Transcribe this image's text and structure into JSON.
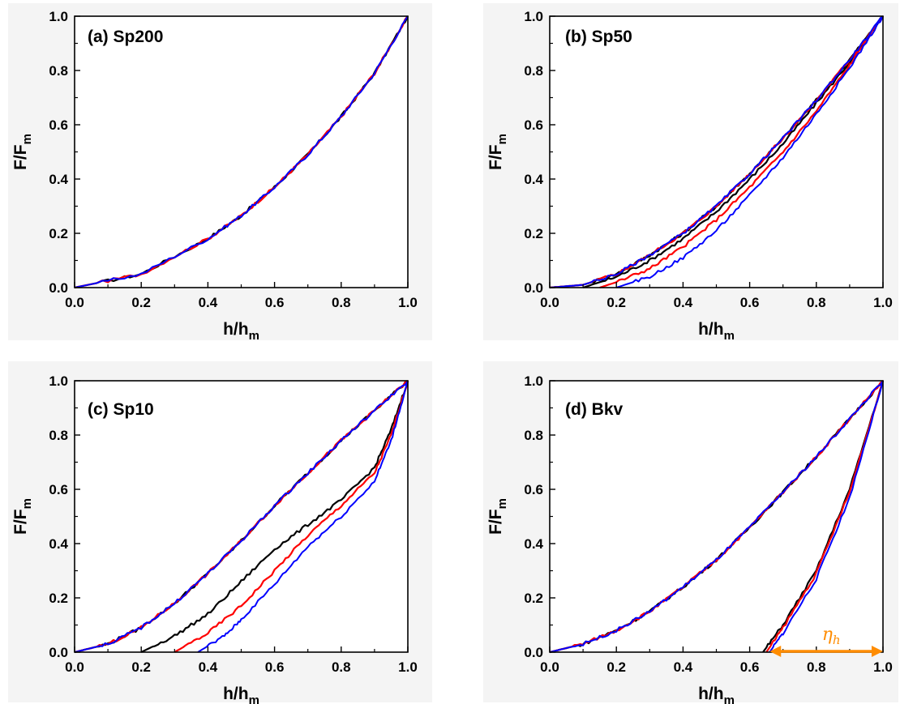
{
  "chart_data": [
    {
      "type": "line",
      "panel": "(a)",
      "label": "(a)  Sp200",
      "xlabel_main": "h/h",
      "xlabel_sub": "m",
      "ylabel_main": "F/F",
      "ylabel_sub": "m",
      "xlim": [
        0,
        1
      ],
      "ylim": [
        0,
        1
      ],
      "xticks": [
        "0.0",
        "0.2",
        "0.4",
        "0.6",
        "0.8",
        "1.0"
      ],
      "yticks": [
        "0.0",
        "0.2",
        "0.4",
        "0.6",
        "0.8",
        "1.0"
      ],
      "series": [
        {
          "color": "#000000",
          "segments": [
            {
              "x": [
                0,
                0.2,
                0.4,
                0.5,
                0.6,
                0.7,
                0.8,
                0.9,
                1.0
              ],
              "y": [
                0,
                0.05,
                0.18,
                0.265,
                0.37,
                0.49,
                0.63,
                0.79,
                1.0
              ]
            }
          ]
        },
        {
          "color": "#ff0000",
          "segments": [
            {
              "x": [
                0,
                0.2,
                0.4,
                0.5,
                0.6,
                0.7,
                0.8,
                0.9,
                1.0
              ],
              "y": [
                0,
                0.05,
                0.18,
                0.265,
                0.37,
                0.49,
                0.63,
                0.79,
                1.0
              ]
            }
          ]
        },
        {
          "color": "#0000ff",
          "segments": [
            {
              "x": [
                0,
                0.2,
                0.4,
                0.5,
                0.6,
                0.7,
                0.8,
                0.9,
                1.0
              ],
              "y": [
                0,
                0.05,
                0.18,
                0.265,
                0.37,
                0.49,
                0.63,
                0.79,
                1.0
              ]
            }
          ]
        }
      ]
    },
    {
      "type": "line",
      "panel": "(b)",
      "label": "(b) Sp50",
      "xlabel_main": "h/h",
      "xlabel_sub": "m",
      "ylabel_main": "F/F",
      "ylabel_sub": "m",
      "xlim": [
        0,
        1
      ],
      "ylim": [
        0,
        1
      ],
      "xticks": [
        "0.0",
        "0.2",
        "0.4",
        "0.6",
        "0.8",
        "1.0"
      ],
      "yticks": [
        "0.0",
        "0.2",
        "0.4",
        "0.6",
        "0.8",
        "1.0"
      ],
      "series": [
        {
          "color": "#000000",
          "segments": [
            {
              "x": [
                0,
                0.1,
                0.2,
                0.3,
                0.4,
                0.5,
                0.6,
                0.7,
                0.8,
                0.9,
                1.0
              ],
              "y": [
                0,
                0.01,
                0.05,
                0.12,
                0.2,
                0.3,
                0.42,
                0.55,
                0.69,
                0.84,
                1.0
              ]
            },
            {
              "x": [
                0.1,
                0.2,
                0.3,
                0.4,
                0.5,
                0.6,
                0.7,
                0.8,
                0.9,
                1.0
              ],
              "y": [
                0,
                0.04,
                0.1,
                0.18,
                0.28,
                0.4,
                0.53,
                0.68,
                0.83,
                1.0
              ]
            }
          ]
        },
        {
          "color": "#ff0000",
          "segments": [
            {
              "x": [
                0,
                0.1,
                0.2,
                0.3,
                0.4,
                0.5,
                0.6,
                0.7,
                0.8,
                0.9,
                1.0
              ],
              "y": [
                0,
                0.01,
                0.05,
                0.12,
                0.2,
                0.3,
                0.42,
                0.55,
                0.69,
                0.84,
                1.0
              ]
            },
            {
              "x": [
                0.15,
                0.2,
                0.3,
                0.4,
                0.5,
                0.6,
                0.7,
                0.8,
                0.9,
                1.0
              ],
              "y": [
                0,
                0.02,
                0.07,
                0.15,
                0.25,
                0.37,
                0.5,
                0.65,
                0.82,
                1.0
              ]
            }
          ]
        },
        {
          "color": "#0000ff",
          "segments": [
            {
              "x": [
                0,
                0.1,
                0.2,
                0.3,
                0.4,
                0.5,
                0.6,
                0.7,
                0.8,
                0.9,
                1.0
              ],
              "y": [
                0,
                0.01,
                0.05,
                0.12,
                0.2,
                0.3,
                0.42,
                0.55,
                0.69,
                0.84,
                1.0
              ]
            },
            {
              "x": [
                0.2,
                0.3,
                0.4,
                0.5,
                0.6,
                0.7,
                0.8,
                0.9,
                1.0
              ],
              "y": [
                0,
                0.04,
                0.11,
                0.21,
                0.34,
                0.48,
                0.64,
                0.81,
                1.0
              ]
            }
          ]
        }
      ]
    },
    {
      "type": "line",
      "panel": "(c)",
      "label": "(c) Sp10",
      "xlabel_main": "h/h",
      "xlabel_sub": "m",
      "ylabel_main": "F/F",
      "ylabel_sub": "m",
      "xlim": [
        0,
        1
      ],
      "ylim": [
        0,
        1
      ],
      "xticks": [
        "0.0",
        "0.2",
        "0.4",
        "0.6",
        "0.8",
        "1.0"
      ],
      "yticks": [
        "0.0",
        "0.2",
        "0.4",
        "0.6",
        "0.8",
        "1.0"
      ],
      "series": [
        {
          "color": "#000000",
          "segments": [
            {
              "x": [
                0,
                0.1,
                0.2,
                0.3,
                0.4,
                0.5,
                0.6,
                0.7,
                0.8,
                0.9,
                1.0
              ],
              "y": [
                0,
                0.03,
                0.09,
                0.18,
                0.29,
                0.41,
                0.54,
                0.66,
                0.78,
                0.89,
                1.0
              ]
            },
            {
              "x": [
                0.2,
                0.3,
                0.4,
                0.5,
                0.6,
                0.7,
                0.8,
                0.9,
                0.95,
                1.0
              ],
              "y": [
                0,
                0.06,
                0.14,
                0.26,
                0.38,
                0.47,
                0.56,
                0.68,
                0.82,
                1.0
              ]
            }
          ]
        },
        {
          "color": "#ff0000",
          "segments": [
            {
              "x": [
                0,
                0.1,
                0.2,
                0.3,
                0.4,
                0.5,
                0.6,
                0.7,
                0.8,
                0.9,
                1.0
              ],
              "y": [
                0,
                0.03,
                0.09,
                0.18,
                0.29,
                0.41,
                0.54,
                0.66,
                0.78,
                0.89,
                1.0
              ]
            },
            {
              "x": [
                0.3,
                0.4,
                0.5,
                0.6,
                0.7,
                0.8,
                0.9,
                0.95,
                1.0
              ],
              "y": [
                0,
                0.07,
                0.17,
                0.3,
                0.43,
                0.54,
                0.66,
                0.8,
                1.0
              ]
            }
          ]
        },
        {
          "color": "#0000ff",
          "segments": [
            {
              "x": [
                0,
                0.1,
                0.2,
                0.3,
                0.4,
                0.5,
                0.6,
                0.7,
                0.8,
                0.9,
                1.0
              ],
              "y": [
                0,
                0.03,
                0.09,
                0.18,
                0.29,
                0.41,
                0.54,
                0.66,
                0.78,
                0.89,
                1.0
              ]
            },
            {
              "x": [
                0.37,
                0.45,
                0.5,
                0.6,
                0.7,
                0.8,
                0.9,
                0.95,
                1.0
              ],
              "y": [
                0,
                0.06,
                0.12,
                0.25,
                0.39,
                0.5,
                0.63,
                0.78,
                1.0
              ]
            }
          ]
        }
      ]
    },
    {
      "type": "line",
      "panel": "(d)",
      "label": "(d) Bkv",
      "xlabel_main": "h/h",
      "xlabel_sub": "m",
      "ylabel_main": "F/F",
      "ylabel_sub": "m",
      "xlim": [
        0,
        1
      ],
      "ylim": [
        0,
        1
      ],
      "xticks": [
        "0.0",
        "0.2",
        "0.4",
        "0.6",
        "0.8",
        "1.0"
      ],
      "yticks": [
        "0.0",
        "0.2",
        "0.4",
        "0.6",
        "0.8",
        "1.0"
      ],
      "annotation": {
        "symbol": "η",
        "sub": "h",
        "color": "#ff8c00",
        "x_from": 0.66,
        "x_to": 1.0,
        "y": 0.0
      },
      "series": [
        {
          "color": "#000000",
          "segments": [
            {
              "x": [
                0,
                0.1,
                0.2,
                0.3,
                0.4,
                0.5,
                0.6,
                0.7,
                0.8,
                0.9,
                1.0
              ],
              "y": [
                0,
                0.03,
                0.08,
                0.15,
                0.24,
                0.34,
                0.46,
                0.59,
                0.72,
                0.86,
                1.0
              ]
            },
            {
              "x": [
                0.64,
                0.7,
                0.8,
                0.9,
                1.0
              ],
              "y": [
                0,
                0.1,
                0.3,
                0.6,
                1.0
              ]
            }
          ]
        },
        {
          "color": "#ff0000",
          "segments": [
            {
              "x": [
                0,
                0.1,
                0.2,
                0.3,
                0.4,
                0.5,
                0.6,
                0.7,
                0.8,
                0.9,
                1.0
              ],
              "y": [
                0,
                0.03,
                0.08,
                0.15,
                0.24,
                0.34,
                0.46,
                0.59,
                0.72,
                0.86,
                1.0
              ]
            },
            {
              "x": [
                0.65,
                0.7,
                0.8,
                0.9,
                1.0
              ],
              "y": [
                0,
                0.09,
                0.29,
                0.59,
                1.0
              ]
            }
          ]
        },
        {
          "color": "#0000ff",
          "segments": [
            {
              "x": [
                0,
                0.1,
                0.2,
                0.3,
                0.4,
                0.5,
                0.6,
                0.7,
                0.8,
                0.9,
                1.0
              ],
              "y": [
                0,
                0.03,
                0.08,
                0.15,
                0.24,
                0.34,
                0.46,
                0.59,
                0.72,
                0.86,
                1.0
              ]
            },
            {
              "x": [
                0.66,
                0.7,
                0.8,
                0.9,
                1.0
              ],
              "y": [
                0,
                0.07,
                0.27,
                0.57,
                1.0
              ]
            }
          ]
        }
      ]
    }
  ]
}
